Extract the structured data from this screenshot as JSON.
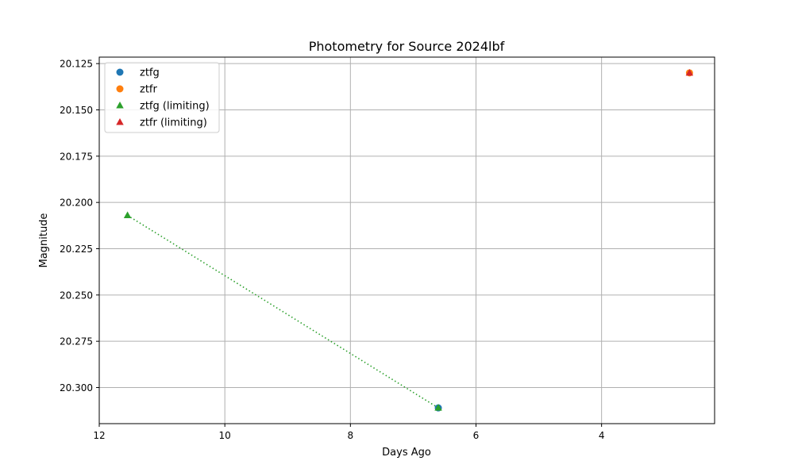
{
  "chart_data": {
    "type": "scatter",
    "title": "Photometry for Source 2024lbf",
    "xlabel": "Days Ago",
    "ylabel": "Magnitude",
    "xlim": [
      12.0,
      2.2
    ],
    "ylim": [
      20.3195,
      20.1215
    ],
    "x_inverted": true,
    "y_inverted": true,
    "grid": true,
    "legend_position": "top-left",
    "x_ticks": [
      12,
      10,
      8,
      6,
      4
    ],
    "x_tick_labels": [
      "12",
      "10",
      "8",
      "6",
      "4"
    ],
    "y_ticks": [
      20.125,
      20.15,
      20.175,
      20.2,
      20.225,
      20.25,
      20.275,
      20.3
    ],
    "y_tick_labels": [
      "20.125",
      "20.150",
      "20.175",
      "20.200",
      "20.225",
      "20.250",
      "20.275",
      "20.300"
    ],
    "series": [
      {
        "name": "ztfg",
        "marker": "circle",
        "color": "#1f77b4",
        "points": [
          {
            "x": 6.6,
            "y": 20.311
          }
        ]
      },
      {
        "name": "ztfr",
        "marker": "circle",
        "color": "#ff7f0e",
        "points": [
          {
            "x": 2.6,
            "y": 20.13
          }
        ]
      },
      {
        "name": "ztfg (limiting)",
        "marker": "triangle",
        "color": "#2ca02c",
        "line": "dotted",
        "points": [
          {
            "x": 11.55,
            "y": 20.207
          },
          {
            "x": 6.6,
            "y": 20.311
          }
        ]
      },
      {
        "name": "ztfr (limiting)",
        "marker": "triangle",
        "color": "#d62728",
        "points": [
          {
            "x": 2.6,
            "y": 20.13
          }
        ]
      }
    ]
  }
}
